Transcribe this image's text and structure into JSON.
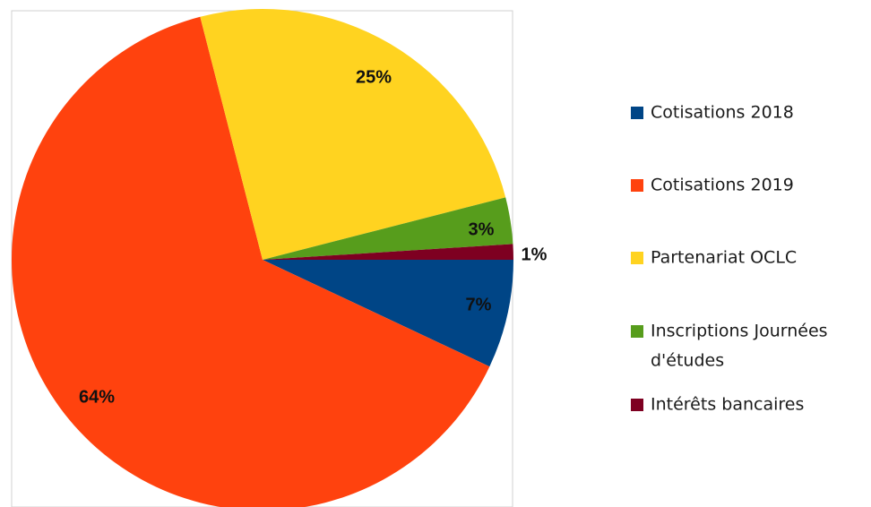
{
  "chart_data": {
    "type": "pie",
    "title": "",
    "start_angle_deg": 0,
    "direction": "clockwise",
    "legend_position": "right",
    "slices": [
      {
        "label": "Cotisations 2018",
        "value": 7,
        "percent_label": "7%",
        "color": "#004586"
      },
      {
        "label": "Cotisations 2019",
        "value": 64,
        "percent_label": "64%",
        "color": "#ff420e"
      },
      {
        "label": "Partenariat OCLC",
        "value": 25,
        "percent_label": "25%",
        "color": "#ffd320"
      },
      {
        "label": "Inscriptions Journées d'études",
        "legend_lines": [
          "Inscriptions Journées",
          "d'études"
        ],
        "value": 3,
        "percent_label": "3%",
        "color": "#579d1c"
      },
      {
        "label": "Intérêts bancaires",
        "value": 1,
        "percent_label": "1%",
        "color": "#7e0021"
      }
    ]
  }
}
